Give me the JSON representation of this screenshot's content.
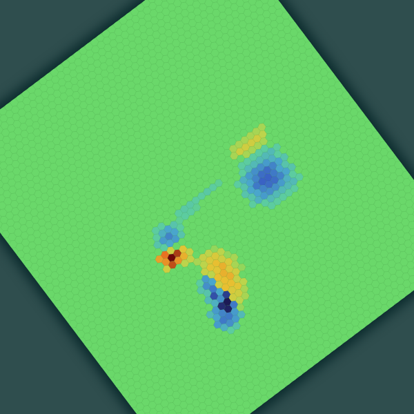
{
  "chart_data": {
    "type": "hex_heatmap",
    "tick_labels": false,
    "grid_rows": 63,
    "grid_cols": 50,
    "background_value": 0,
    "color_range": [
      -1,
      1
    ],
    "cells": [
      {
        "row": 27,
        "col": 32,
        "values": [
          0.15,
          0.15,
          0.15,
          0.15,
          0.15,
          0.15
        ]
      },
      {
        "row": 28,
        "col": 32,
        "values": [
          0.15,
          0.3,
          0.3,
          0.3,
          0.3,
          0.2
        ]
      },
      {
        "row": 29,
        "col": 33,
        "values": [
          0.15,
          0.15,
          0.15,
          0.15
        ]
      },
      {
        "row": 30,
        "col": 32,
        "values": [
          -0.1,
          -0.1,
          -0.1,
          -0.1,
          -0.1
        ]
      },
      {
        "row": 31,
        "col": 31,
        "values": [
          -0.1,
          -0.2,
          -0.2,
          -0.2,
          -0.2,
          -0.2,
          -0.1
        ]
      },
      {
        "row": 32,
        "col": 30,
        "values": [
          -0.1,
          -0.25,
          -0.35,
          -0.4,
          -0.4,
          -0.35,
          -0.25,
          -0.1
        ]
      },
      {
        "row": 33,
        "col": 30,
        "values": [
          -0.15,
          -0.3,
          -0.45,
          -0.55,
          -0.55,
          -0.45,
          -0.3,
          -0.15
        ]
      },
      {
        "row": 34,
        "col": 30,
        "values": [
          -0.15,
          -0.3,
          -0.5,
          -0.6,
          -0.6,
          -0.5,
          -0.3,
          -0.15
        ]
      },
      {
        "row": 35,
        "col": 30,
        "values": [
          -0.15,
          -0.3,
          -0.45,
          -0.55,
          -0.55,
          -0.45,
          -0.3,
          -0.15
        ]
      },
      {
        "row": 36,
        "col": 30,
        "values": [
          -0.1,
          -0.25,
          -0.35,
          -0.4,
          -0.4,
          -0.35,
          -0.25,
          -0.1
        ]
      },
      {
        "row": 37,
        "col": 31,
        "values": [
          -0.1,
          -0.2,
          -0.2,
          -0.2,
          -0.2,
          -0.2,
          -0.1
        ]
      },
      {
        "row": 38,
        "col": 32,
        "values": [
          -0.1,
          -0.1,
          -0.1,
          -0.1,
          -0.1
        ]
      },
      {
        "row": 30,
        "col": 21,
        "values": [
          -0.1,
          -0.12,
          -0.12,
          -0.1,
          -0.1,
          -0.12,
          -0.1,
          -0.08
        ]
      },
      {
        "row": 31,
        "col": 20,
        "values": [
          -0.08,
          -0.1,
          -0.1,
          -0.08
        ]
      },
      {
        "row": 30,
        "col": 17,
        "values": [
          -0.1,
          -0.1
        ]
      },
      {
        "row": 31,
        "col": 16,
        "values": [
          -0.1,
          -0.25,
          -0.3,
          -0.15
        ]
      },
      {
        "row": 32,
        "col": 16,
        "values": [
          -0.15,
          -0.35,
          -0.45,
          -0.3,
          -0.1
        ]
      },
      {
        "row": 33,
        "col": 16,
        "values": [
          -0.1,
          -0.3,
          -0.35,
          -0.15
        ]
      },
      {
        "row": 34,
        "col": 15,
        "values": [
          0.55,
          0.7,
          0.3
        ]
      },
      {
        "row": 35,
        "col": 15,
        "values": [
          0.6,
          1.0,
          0.85,
          0.4
        ]
      },
      {
        "row": 36,
        "col": 15,
        "values": [
          0.3,
          0.8,
          0.6,
          0.5,
          0.25
        ]
      },
      {
        "row": 37,
        "col": 17,
        "values": [
          0.2,
          0.25
        ]
      },
      {
        "row": 38,
        "col": 19,
        "values": [
          0.15,
          0.25,
          0.2,
          0.1
        ]
      },
      {
        "row": 39,
        "col": 19,
        "values": [
          0.2,
          0.35,
          0.35,
          0.2
        ]
      },
      {
        "row": 40,
        "col": 19,
        "values": [
          0.25,
          0.4,
          0.45,
          0.3,
          0.1
        ]
      },
      {
        "row": 41,
        "col": 17,
        "values": [
          -0.1,
          -0.35,
          0.2,
          0.4,
          0.5,
          0.35,
          0.15
        ]
      },
      {
        "row": 42,
        "col": 17,
        "values": [
          -0.15,
          -0.4,
          -0.3,
          0.45,
          0.5,
          0.35,
          0.15
        ]
      },
      {
        "row": 43,
        "col": 17,
        "values": [
          -0.15,
          -0.5,
          0.3,
          0.45,
          0.5,
          0.3,
          0.1
        ]
      },
      {
        "row": 44,
        "col": 17,
        "values": [
          -0.2,
          -0.7,
          -0.3,
          0.45,
          0.45,
          0.25
        ]
      },
      {
        "row": 45,
        "col": 17,
        "values": [
          -0.25,
          -0.4,
          -0.8,
          0.35,
          0.4,
          0.2
        ]
      },
      {
        "row": 46,
        "col": 16,
        "values": [
          -0.2,
          -0.35,
          -0.9,
          -1.0,
          0.3,
          0.3,
          0.15
        ]
      },
      {
        "row": 47,
        "col": 16,
        "values": [
          -0.3,
          -0.45,
          -0.95,
          -0.5,
          0.2,
          0.15
        ]
      },
      {
        "row": 48,
        "col": 16,
        "values": [
          -0.35,
          -0.5,
          -0.5,
          -0.35,
          0.1
        ]
      },
      {
        "row": 49,
        "col": 16,
        "values": [
          -0.25,
          -0.4,
          -0.35,
          -0.2
        ]
      },
      {
        "row": 50,
        "col": 17,
        "values": [
          -0.1,
          -0.15
        ]
      }
    ]
  }
}
